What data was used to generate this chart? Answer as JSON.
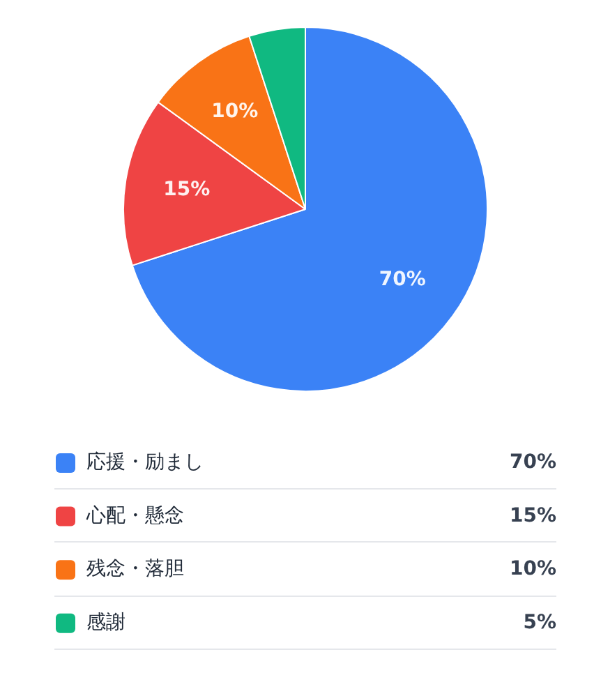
{
  "chart_data": {
    "type": "pie",
    "categories": [
      "応援・励まし",
      "心配・懸念",
      "残念・落胆",
      "感謝"
    ],
    "values": [
      70,
      15,
      10,
      5
    ],
    "colors": [
      "#3b82f6",
      "#ef4444",
      "#f97316",
      "#10b981"
    ],
    "value_labels": [
      "70%",
      "15%",
      "10%",
      "5%"
    ],
    "legend": "bottom"
  }
}
